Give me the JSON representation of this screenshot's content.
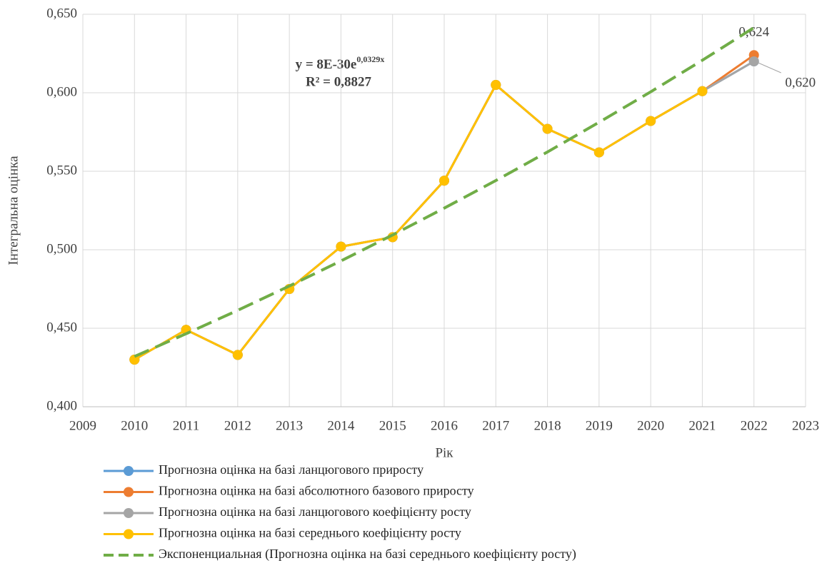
{
  "chart_data": {
    "type": "line",
    "x_label": "Рік",
    "y_label": "Інтегральна оцінка",
    "x": [
      2010,
      2011,
      2012,
      2013,
      2014,
      2015,
      2016,
      2017,
      2018,
      2019,
      2020,
      2021,
      2022
    ],
    "xlim": [
      2009,
      2023
    ],
    "xticks": [
      2009,
      2010,
      2011,
      2012,
      2013,
      2014,
      2015,
      2016,
      2017,
      2018,
      2019,
      2020,
      2021,
      2022,
      2023
    ],
    "ylim": [
      0.4,
      0.65
    ],
    "yticks": [
      {
        "value": 0.4,
        "label": "0,400"
      },
      {
        "value": 0.45,
        "label": "0,450"
      },
      {
        "value": 0.5,
        "label": "0,500"
      },
      {
        "value": 0.55,
        "label": "0,550"
      },
      {
        "value": 0.6,
        "label": "0,600"
      },
      {
        "value": 0.65,
        "label": "0,650"
      }
    ],
    "grid": true,
    "legend": "bottom",
    "series": [
      {
        "name": "Прогнозна оцінка на базі ланцюгового приросту",
        "color": "#5b9bd5",
        "values": [
          0.43,
          0.449,
          0.433,
          0.475,
          0.502,
          0.508,
          0.544,
          0.605,
          0.577,
          0.562,
          0.582,
          0.601,
          0.62
        ]
      },
      {
        "name": "Прогнозна оцінка на базі абсолютного базового приросту",
        "color": "#ed7d31",
        "values": [
          0.43,
          0.449,
          0.433,
          0.475,
          0.502,
          0.508,
          0.544,
          0.605,
          0.577,
          0.562,
          0.582,
          0.601,
          0.624
        ],
        "value_labels": [
          null,
          null,
          null,
          null,
          null,
          null,
          null,
          null,
          null,
          null,
          null,
          null,
          "0,624"
        ]
      },
      {
        "name": "Прогнозна оцінка на базі ланцюгового коефіцієнту росту",
        "color": "#a5a5a5",
        "values": [
          0.43,
          0.449,
          0.433,
          0.475,
          0.502,
          0.508,
          0.544,
          0.605,
          0.577,
          0.562,
          0.582,
          0.601,
          0.62
        ],
        "value_labels": [
          null,
          null,
          null,
          null,
          null,
          null,
          null,
          null,
          null,
          null,
          null,
          null,
          "0,620"
        ]
      },
      {
        "name": "Прогнозна оцінка на базі середнього коефіцієнту росту",
        "color": "#ffc000",
        "values": [
          0.43,
          0.449,
          0.433,
          0.475,
          0.502,
          0.508,
          0.544,
          0.605,
          0.577,
          0.562,
          0.582,
          0.601,
          null
        ]
      },
      {
        "name": "Экспоненциальная (Прогнозна оцінка на базі середнього коефіцієнту росту)",
        "color": "#70ad47",
        "dashed": true,
        "markers": false,
        "values": [
          0.432,
          0.4465,
          0.4614,
          0.4769,
          0.4929,
          0.5094,
          0.5265,
          0.5441,
          0.5623,
          0.5812,
          0.6006,
          0.6207,
          0.6415
        ]
      }
    ],
    "trendline_equation": {
      "base": "y = 8E-30e",
      "exponent": "0,0329x",
      "r_squared": "R² = 0,8827"
    }
  }
}
